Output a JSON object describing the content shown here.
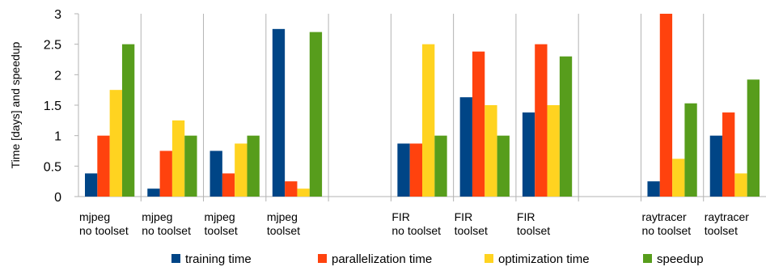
{
  "chart_data": {
    "type": "bar",
    "title": "",
    "xlabel": "",
    "ylabel": "Time [days] and speedup",
    "ylim": [
      0,
      3
    ],
    "yticks": [
      "0",
      "0.5",
      "1",
      "1.5",
      "2",
      "2.5",
      "3"
    ],
    "grid": "vertical separators",
    "legend_position": "bottom",
    "categories": [
      [
        "mjpeg",
        "no toolset"
      ],
      [
        "mjpeg",
        "no toolset"
      ],
      [
        "mjpeg",
        "toolset"
      ],
      [
        "mjpeg",
        "toolset"
      ],
      [
        "",
        ""
      ],
      [
        "FIR",
        "no toolset"
      ],
      [
        "FIR",
        "toolset"
      ],
      [
        "FIR",
        "toolset"
      ],
      [
        "",
        ""
      ],
      [
        "raytracer",
        "no toolset"
      ],
      [
        "raytracer",
        "toolset"
      ]
    ],
    "series": [
      {
        "name": "training time",
        "color": "#004586",
        "values": [
          0.38,
          0.13,
          0.75,
          2.75,
          null,
          0.87,
          1.63,
          1.38,
          null,
          0.25,
          1.0
        ]
      },
      {
        "name": "parallelization time",
        "color": "#ff420e",
        "values": [
          1.0,
          0.75,
          0.38,
          0.25,
          null,
          0.87,
          2.38,
          2.5,
          null,
          3.0,
          1.38
        ]
      },
      {
        "name": "optimization time",
        "color": "#ffd320",
        "values": [
          1.75,
          1.25,
          0.87,
          0.13,
          null,
          2.5,
          1.5,
          1.5,
          null,
          0.62,
          0.38
        ]
      },
      {
        "name": "speedup",
        "color": "#579d1c",
        "values": [
          2.5,
          1.0,
          1.0,
          2.7,
          null,
          1.0,
          1.0,
          2.3,
          null,
          1.53,
          1.92
        ]
      }
    ]
  }
}
